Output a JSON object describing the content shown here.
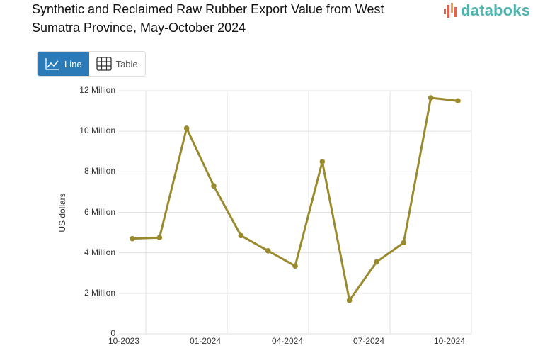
{
  "header": {
    "title": "Synthetic and Reclaimed Raw Rubber Export Value from West Sumatra Province, May-October 2024",
    "logo_text": "databoks"
  },
  "view_toggle": {
    "line_label": "Line",
    "table_label": "Table",
    "active": "Line"
  },
  "colors": {
    "series": "#9a8a2e",
    "active_button": "#2a7bb8",
    "logo_text": "#4fb3ae",
    "logo_bars": "#e8604c"
  },
  "chart_data": {
    "type": "line",
    "title": "Synthetic and Reclaimed Raw Rubber Export Value from West Sumatra Province, May-October 2024",
    "xlabel": "",
    "ylabel": "US dollars",
    "ylim": [
      0,
      12000000
    ],
    "yticks": [
      "0",
      "2 Million",
      "4 Million",
      "6 Million",
      "8 Million",
      "10 Million",
      "12 Million"
    ],
    "xticks": [
      "10-2023",
      "01-2024",
      "04-2024",
      "07-2024",
      "10-2024"
    ],
    "grid": true,
    "legend": "none",
    "x": [
      "10-2023",
      "11-2023",
      "12-2023",
      "01-2024",
      "02-2024",
      "03-2024",
      "04-2024",
      "05-2024",
      "06-2024",
      "07-2024",
      "08-2024",
      "09-2024",
      "10-2024"
    ],
    "series": [
      {
        "name": "Export Value",
        "values": [
          4700000,
          4750000,
          10150000,
          7300000,
          4850000,
          4100000,
          3350000,
          8500000,
          1650000,
          3550000,
          4500000,
          11650000,
          11500000
        ]
      }
    ]
  }
}
